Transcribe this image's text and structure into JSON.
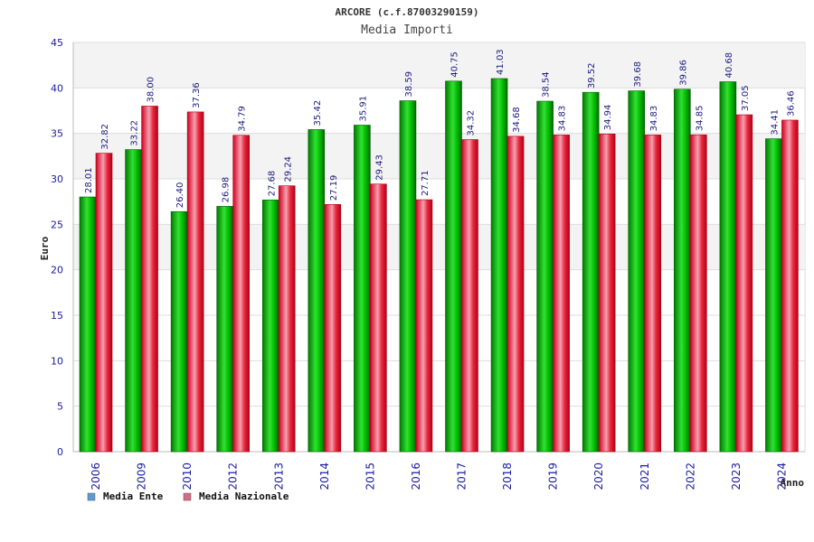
{
  "chart_data": {
    "type": "bar",
    "title": "ARCORE (c.f.87003290159)",
    "subtitle": "Media Importi",
    "xlabel": "Anno",
    "ylabel": "Euro",
    "ylim": [
      0,
      45
    ],
    "yticks": [
      0,
      5,
      10,
      15,
      20,
      25,
      30,
      35,
      40,
      45
    ],
    "categories": [
      "2006",
      "2009",
      "2010",
      "2012",
      "2013",
      "2014",
      "2015",
      "2016",
      "2017",
      "2018",
      "2019",
      "2020",
      "2021",
      "2022",
      "2023",
      "2024"
    ],
    "series": [
      {
        "name": "Media Ente",
        "color": "#00b400",
        "legend_color": "#5b9bd5",
        "values": [
          28.01,
          33.22,
          26.4,
          26.98,
          27.68,
          35.42,
          35.91,
          38.59,
          40.75,
          41.03,
          38.54,
          39.52,
          39.68,
          39.86,
          40.68,
          34.41
        ],
        "labels": [
          "28.01",
          "33.22",
          "26.40",
          "26.98",
          "27.68",
          "35.42",
          "35.91",
          "38.59",
          "40.75",
          "41.03",
          "38.54",
          "39.52",
          "39.68",
          "39.86",
          "40.68",
          "34.41"
        ]
      },
      {
        "name": "Media Nazionale",
        "color": "#e8283c",
        "legend_color": "#d86a8a",
        "values": [
          32.82,
          38.0,
          37.36,
          34.79,
          29.24,
          27.19,
          29.43,
          27.71,
          34.32,
          34.68,
          34.83,
          34.94,
          34.83,
          34.85,
          37.05,
          36.46
        ],
        "labels": [
          "32.82",
          "38.00",
          "37.36",
          "34.79",
          "29.24",
          "27.19",
          "29.43",
          "27.71",
          "34.32",
          "34.68",
          "34.83",
          "34.94",
          "34.83",
          "34.85",
          "37.05",
          "36.46"
        ]
      }
    ],
    "grid": true,
    "legend": "bottom-left"
  }
}
